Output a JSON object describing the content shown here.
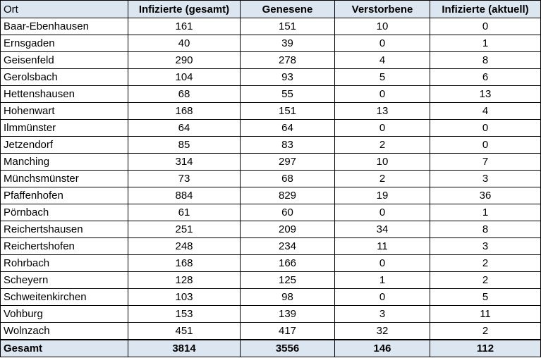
{
  "table": {
    "headers": [
      "Ort",
      "Infizierte (gesamt)",
      "Genesene",
      "Verstorbene",
      "Infizierte (aktuell)"
    ],
    "rows": [
      [
        "Baar-Ebenhausen",
        "161",
        "151",
        "10",
        "0"
      ],
      [
        "Ernsgaden",
        "40",
        "39",
        "0",
        "1"
      ],
      [
        "Geisenfeld",
        "290",
        "278",
        "4",
        "8"
      ],
      [
        "Gerolsbach",
        "104",
        "93",
        "5",
        "6"
      ],
      [
        "Hettenshausen",
        "68",
        "55",
        "0",
        "13"
      ],
      [
        "Hohenwart",
        "168",
        "151",
        "13",
        "4"
      ],
      [
        "Ilmmünster",
        "64",
        "64",
        "0",
        "0"
      ],
      [
        "Jetzendorf",
        "85",
        "83",
        "2",
        "0"
      ],
      [
        "Manching",
        "314",
        "297",
        "10",
        "7"
      ],
      [
        "Münchsmünster",
        "73",
        "68",
        "2",
        "3"
      ],
      [
        "Pfaffenhofen",
        "884",
        "829",
        "19",
        "36"
      ],
      [
        "Pörnbach",
        "61",
        "60",
        "0",
        "1"
      ],
      [
        "Reichertshausen",
        "251",
        "209",
        "34",
        "8"
      ],
      [
        "Reichertshofen",
        "248",
        "234",
        "11",
        "3"
      ],
      [
        "Rohrbach",
        "168",
        "166",
        "0",
        "2"
      ],
      [
        "Scheyern",
        "128",
        "125",
        "1",
        "2"
      ],
      [
        "Schweitenkirchen",
        "103",
        "98",
        "0",
        "5"
      ],
      [
        "Vohburg",
        "153",
        "139",
        "3",
        "11"
      ],
      [
        "Wolnzach",
        "451",
        "417",
        "32",
        "2"
      ]
    ],
    "total": [
      "Gesamt",
      "3814",
      "3556",
      "146",
      "112"
    ]
  },
  "colors": {
    "header_bg": "#dce6f1",
    "border": "#000000"
  }
}
